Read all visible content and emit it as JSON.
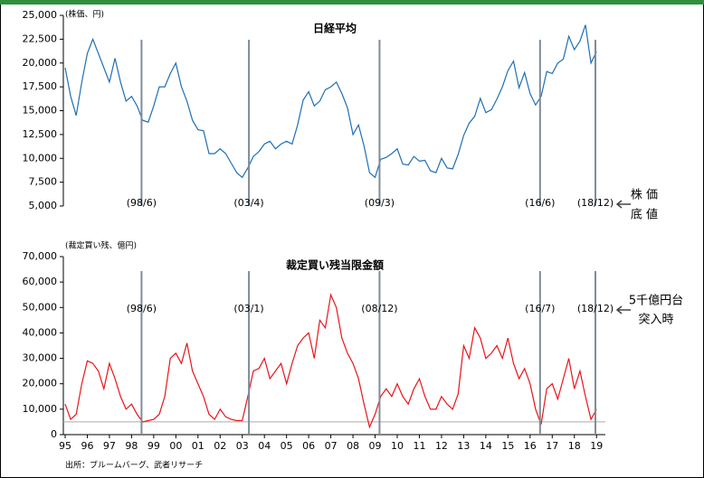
{
  "chart_data": [
    {
      "type": "line",
      "title": "日経平均",
      "unit_label": "(株価、円)",
      "xlim": [
        1995,
        2019.4
      ],
      "ylim": [
        5000,
        25000
      ],
      "yticks": [
        {
          "value": 5000,
          "label": "5,000"
        },
        {
          "value": 7500,
          "label": "7,500"
        },
        {
          "value": 10000,
          "label": "10,000"
        },
        {
          "value": 12500,
          "label": "12,500"
        },
        {
          "value": 15000,
          "label": "15,000"
        },
        {
          "value": 17500,
          "label": "17,500"
        },
        {
          "value": 20000,
          "label": "20,000"
        },
        {
          "value": 22500,
          "label": "22,500"
        },
        {
          "value": 25000,
          "label": "25,000"
        }
      ],
      "markers": [
        {
          "x": 1998.45,
          "label": "(98/6)"
        },
        {
          "x": 2003.3,
          "label": "(03/4)"
        },
        {
          "x": 2009.2,
          "label": "(09/3)"
        },
        {
          "x": 2016.45,
          "label": "(16/6)"
        },
        {
          "x": 2018.95,
          "label": "(18/12)"
        }
      ],
      "side_note": [
        "株 価",
        "底 値"
      ],
      "series": [
        {
          "name": "日経平均",
          "color": "#1f6fb4",
          "x": [
            1995,
            1995.25,
            1995.5,
            1995.75,
            1996,
            1996.25,
            1996.5,
            1996.75,
            1997,
            1997.25,
            1997.5,
            1997.75,
            1998,
            1998.25,
            1998.5,
            1998.75,
            1999,
            1999.25,
            1999.5,
            1999.75,
            2000,
            2000.25,
            2000.5,
            2000.75,
            2001,
            2001.25,
            2001.5,
            2001.75,
            2002,
            2002.25,
            2002.5,
            2002.75,
            2003,
            2003.25,
            2003.5,
            2003.75,
            2004,
            2004.25,
            2004.5,
            2004.75,
            2005,
            2005.25,
            2005.5,
            2005.75,
            2006,
            2006.25,
            2006.5,
            2006.75,
            2007,
            2007.25,
            2007.5,
            2007.75,
            2008,
            2008.25,
            2008.5,
            2008.75,
            2009,
            2009.25,
            2009.5,
            2009.75,
            2010,
            2010.25,
            2010.5,
            2010.75,
            2011,
            2011.25,
            2011.5,
            2011.75,
            2012,
            2012.25,
            2012.5,
            2012.75,
            2013,
            2013.25,
            2013.5,
            2013.75,
            2014,
            2014.25,
            2014.5,
            2014.75,
            2015,
            2015.25,
            2015.5,
            2015.75,
            2016,
            2016.25,
            2016.5,
            2016.75,
            2017,
            2017.25,
            2017.5,
            2017.75,
            2018,
            2018.25,
            2018.5,
            2018.75,
            2019
          ],
          "values": [
            19500,
            16500,
            14500,
            18000,
            21000,
            22500,
            21000,
            19500,
            18000,
            20500,
            18000,
            16000,
            16500,
            15500,
            14000,
            13800,
            15500,
            17500,
            17500,
            18900,
            20000,
            17500,
            16000,
            14000,
            13000,
            12900,
            10500,
            10500,
            11000,
            10500,
            9500,
            8500,
            8000,
            9000,
            10200,
            10700,
            11500,
            11800,
            11000,
            11500,
            11800,
            11500,
            13500,
            16100,
            17000,
            15500,
            16000,
            17200,
            17500,
            18000,
            16800,
            15300,
            12500,
            13500,
            11300,
            8500,
            8000,
            9900,
            10100,
            10500,
            11000,
            9400,
            9300,
            10200,
            9700,
            9800,
            8700,
            8500,
            10000,
            9000,
            8900,
            10400,
            12400,
            13700,
            14400,
            16300,
            14800,
            15100,
            16200,
            17500,
            19200,
            20200,
            17400,
            19000,
            16800,
            15600,
            16500,
            19100,
            18900,
            20000,
            20400,
            22800,
            21400,
            22300,
            24000,
            20000,
            21200
          ]
        }
      ]
    },
    {
      "type": "line",
      "title": "裁定買い残当限金額",
      "unit_label": "(裁定買い残、億円)",
      "xlim": [
        1995,
        2019.4
      ],
      "ylim": [
        0,
        70000
      ],
      "xticks": [
        {
          "value": 1995,
          "label": "95"
        },
        {
          "value": 1996,
          "label": "96"
        },
        {
          "value": 1997,
          "label": "97"
        },
        {
          "value": 1998,
          "label": "98"
        },
        {
          "value": 1999,
          "label": "99"
        },
        {
          "value": 2000,
          "label": "00"
        },
        {
          "value": 2001,
          "label": "01"
        },
        {
          "value": 2002,
          "label": "02"
        },
        {
          "value": 2003,
          "label": "03"
        },
        {
          "value": 2004,
          "label": "04"
        },
        {
          "value": 2005,
          "label": "05"
        },
        {
          "value": 2006,
          "label": "06"
        },
        {
          "value": 2007,
          "label": "07"
        },
        {
          "value": 2008,
          "label": "08"
        },
        {
          "value": 2009,
          "label": "09"
        },
        {
          "value": 2010,
          "label": "10"
        },
        {
          "value": 2011,
          "label": "11"
        },
        {
          "value": 2012,
          "label": "12"
        },
        {
          "value": 2013,
          "label": "13"
        },
        {
          "value": 2014,
          "label": "14"
        },
        {
          "value": 2015,
          "label": "15"
        },
        {
          "value": 2016,
          "label": "16"
        },
        {
          "value": 2017,
          "label": "17"
        },
        {
          "value": 2018,
          "label": "18"
        },
        {
          "value": 2019,
          "label": "19"
        }
      ],
      "yticks": [
        0,
        {
          "value": 10000,
          "label": "10,000"
        },
        {
          "value": 20000,
          "label": "20,000"
        },
        {
          "value": 30000,
          "label": "30,000"
        },
        {
          "value": 40000,
          "label": "40,000"
        },
        {
          "value": 50000,
          "label": "50,000"
        },
        {
          "value": 60000,
          "label": "60,000"
        },
        {
          "value": 70000,
          "label": "70,000"
        }
      ],
      "reference_line": 5000,
      "markers": [
        {
          "x": 1998.45,
          "label": "(98/6)"
        },
        {
          "x": 2003.3,
          "label": "(03/1)"
        },
        {
          "x": 2009.2,
          "label": "(08/12)"
        },
        {
          "x": 2016.45,
          "label": "(16/7)"
        },
        {
          "x": 2018.95,
          "label": "(18/12)"
        }
      ],
      "side_note": [
        "5千億円台",
        "突入時"
      ],
      "source": "出所：ブルームバーグ、武者リサーチ",
      "series": [
        {
          "name": "裁定買い残当限金額",
          "color": "#e8141b",
          "x": [
            1995,
            1995.25,
            1995.5,
            1995.75,
            1996,
            1996.25,
            1996.5,
            1996.75,
            1997,
            1997.25,
            1997.5,
            1997.75,
            1998,
            1998.25,
            1998.5,
            1998.75,
            1999,
            1999.25,
            1999.5,
            1999.75,
            2000,
            2000.25,
            2000.5,
            2000.75,
            2001,
            2001.25,
            2001.5,
            2001.75,
            2002,
            2002.25,
            2002.5,
            2002.75,
            2003,
            2003.25,
            2003.5,
            2003.75,
            2004,
            2004.25,
            2004.5,
            2004.75,
            2005,
            2005.25,
            2005.5,
            2005.75,
            2006,
            2006.25,
            2006.5,
            2006.75,
            2007,
            2007.25,
            2007.5,
            2007.75,
            2008,
            2008.25,
            2008.5,
            2008.75,
            2009,
            2009.25,
            2009.5,
            2009.75,
            2010,
            2010.25,
            2010.5,
            2010.75,
            2011,
            2011.25,
            2011.5,
            2011.75,
            2012,
            2012.25,
            2012.5,
            2012.75,
            2013,
            2013.25,
            2013.5,
            2013.75,
            2014,
            2014.25,
            2014.5,
            2014.75,
            2015,
            2015.25,
            2015.5,
            2015.75,
            2016,
            2016.25,
            2016.5,
            2016.75,
            2017,
            2017.25,
            2017.5,
            2017.75,
            2018,
            2018.25,
            2018.5,
            2018.75,
            2019
          ],
          "values": [
            12000,
            6000,
            8000,
            20000,
            29000,
            28000,
            25000,
            18000,
            28000,
            22000,
            15000,
            10000,
            12000,
            8000,
            5000,
            5500,
            6000,
            8000,
            15000,
            30000,
            32000,
            28000,
            36000,
            25000,
            20000,
            15000,
            8000,
            6000,
            10000,
            7000,
            6000,
            5500,
            5500,
            15000,
            25000,
            26000,
            30000,
            22000,
            25000,
            28000,
            20000,
            28000,
            35000,
            38000,
            40000,
            30000,
            45000,
            42000,
            55000,
            50000,
            38000,
            32000,
            28000,
            22000,
            12000,
            3000,
            8000,
            15000,
            18000,
            15000,
            20000,
            15000,
            12000,
            18000,
            22000,
            15000,
            10000,
            10000,
            15000,
            12000,
            10000,
            16000,
            35000,
            30000,
            42000,
            38000,
            30000,
            32000,
            35000,
            30000,
            38000,
            28000,
            22000,
            26000,
            20000,
            10000,
            4000,
            18000,
            20000,
            14000,
            22000,
            30000,
            18000,
            25000,
            15000,
            6000,
            10000
          ]
        }
      ]
    }
  ]
}
